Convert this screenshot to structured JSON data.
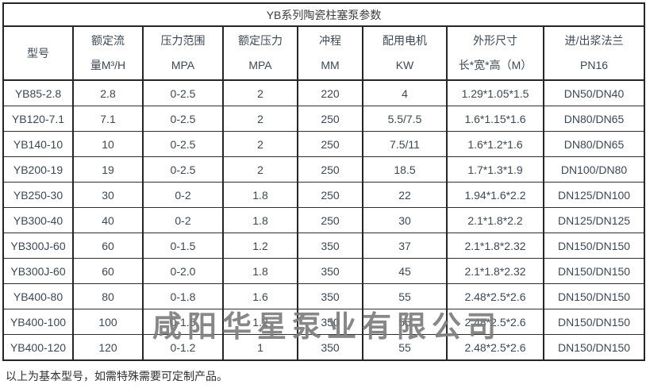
{
  "page": {
    "title": "YB系列陶瓷柱塞泵参数",
    "footnote": "以上为基本型号，如需特殊需要可定制产品。",
    "watermark": "咸阳华星泵业有限公司"
  },
  "colors": {
    "border": "#262626",
    "text": "#3d4854",
    "title_text": "#3c3c3c",
    "watermark_gray": "#7d7d7d",
    "background": "#ffffff"
  },
  "table": {
    "headers": [
      {
        "line1": "型号",
        "line2": ""
      },
      {
        "line1": "额定流",
        "line2": "量M³/H"
      },
      {
        "line1": "压力范围",
        "line2": "MPA"
      },
      {
        "line1": "额定压力",
        "line2": "MPA"
      },
      {
        "line1": "冲程",
        "line2": "MM"
      },
      {
        "line1": "配用电机",
        "line2": "KW"
      },
      {
        "line1": "外形尺寸",
        "line2": "长*宽*高（M）"
      },
      {
        "line1": "进/出浆法兰",
        "line2": "PN16"
      }
    ],
    "rows": [
      [
        "YB85-2.8",
        "2.8",
        "0-2.5",
        "2",
        "220",
        "4",
        "1.29*1.05*1.5",
        "DN50/DN40"
      ],
      [
        "YB120-7.1",
        "7.1",
        "0-2.5",
        "2",
        "250",
        "5.5/7.5",
        "1.6*1.15*1.6",
        "DN80/DN65"
      ],
      [
        "YB140-10",
        "10",
        "0-2.5",
        "2",
        "250",
        "7.5/11",
        "1.6*1.2*1.6",
        "DN80/DN65"
      ],
      [
        "YB200-19",
        "19",
        "0-2.5",
        "2",
        "250",
        "18.5",
        "1.7*1.3*1.9",
        "DN100/DN80"
      ],
      [
        "YB250-30",
        "30",
        "0-2",
        "1.8",
        "250",
        "22",
        "1.94*1.6*2.2",
        "DN125/DN100"
      ],
      [
        "YB300-40",
        "40",
        "0-2",
        "1.8",
        "250",
        "30",
        "2.1*1.8*2.2",
        "DN125/DN125"
      ],
      [
        "YB300J-60",
        "60",
        "0-1.5",
        "1.2",
        "350",
        "37",
        "2.1*1.8*2.32",
        "DN150/DN150"
      ],
      [
        "YB300J-60",
        "60",
        "0-2.0",
        "1.8",
        "350",
        "45",
        "2.1*1.8*2.32",
        "DN150/DN150"
      ],
      [
        "YB400-80",
        "80",
        "0-1.8",
        "1.6",
        "350",
        "55",
        "2.48*2.5*2.6",
        "DN150/DN150"
      ],
      [
        "YB400-100",
        "100",
        "0-1.5",
        "1.2",
        "350",
        "55",
        "2.48*2.5*2.6",
        "DN150/DN150"
      ],
      [
        "YB400-120",
        "120",
        "0-1.2",
        "1",
        "350",
        "55",
        "2.48*2.5*2.6",
        "DN150/DN150"
      ]
    ]
  }
}
